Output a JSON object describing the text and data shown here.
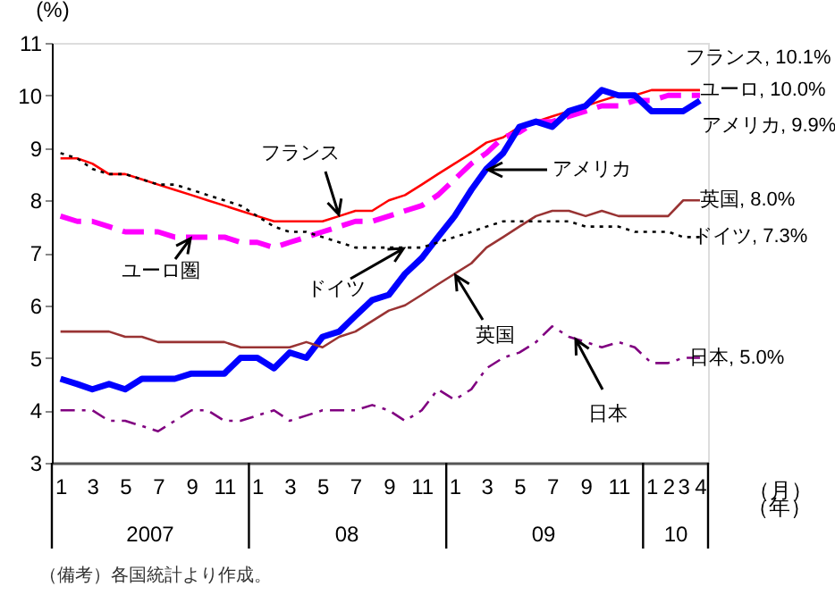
{
  "chart_data": {
    "type": "line",
    "ylabel": "(%)",
    "xlabel": "（月）",
    "x": [
      "2007-01",
      "2007-02",
      "2007-03",
      "2007-04",
      "2007-05",
      "2007-06",
      "2007-07",
      "2007-08",
      "2007-09",
      "2007-10",
      "2007-11",
      "2007-12",
      "2008-01",
      "2008-02",
      "2008-03",
      "2008-04",
      "2008-05",
      "2008-06",
      "2008-07",
      "2008-08",
      "2008-09",
      "2008-10",
      "2008-11",
      "2008-12",
      "2009-01",
      "2009-02",
      "2009-03",
      "2009-04",
      "2009-05",
      "2009-06",
      "2009-07",
      "2009-08",
      "2009-09",
      "2009-10",
      "2009-11",
      "2009-12",
      "2010-01",
      "2010-02",
      "2010-03",
      "2010-04"
    ],
    "series": [
      {
        "color": "#ff0000",
        "line_style": "solid",
        "values": [
          8.8,
          8.8,
          8.7,
          8.5,
          8.5,
          8.4,
          8.3,
          8.2,
          8.1,
          8.0,
          7.9,
          7.8,
          7.7,
          7.6,
          7.6,
          7.6,
          7.6,
          7.7,
          7.8,
          7.8,
          8.0,
          8.1,
          8.3,
          8.5,
          8.7,
          8.9,
          9.1,
          9.2,
          9.4,
          9.5,
          9.6,
          9.7,
          9.8,
          9.9,
          10.0,
          10.0,
          10.1,
          10.1,
          10.1,
          10.1
        ]
      },
      {
        "color": "#ff00ff",
        "line_style": "dashed",
        "values": [
          7.7,
          7.6,
          7.6,
          7.5,
          7.4,
          7.4,
          7.4,
          7.3,
          7.3,
          7.3,
          7.3,
          7.2,
          7.2,
          7.1,
          7.2,
          7.3,
          7.4,
          7.5,
          7.6,
          7.6,
          7.7,
          7.8,
          7.9,
          8.1,
          8.4,
          8.7,
          8.9,
          9.2,
          9.3,
          9.5,
          9.5,
          9.6,
          9.7,
          9.8,
          9.8,
          9.9,
          9.9,
          10.0,
          10.0,
          10.0
        ]
      },
      {
        "color": "#0000ff",
        "line_style": "solid",
        "values": [
          4.6,
          4.5,
          4.4,
          4.5,
          4.4,
          4.6,
          4.6,
          4.6,
          4.7,
          4.7,
          4.7,
          5.0,
          5.0,
          4.8,
          5.1,
          5.0,
          5.4,
          5.5,
          5.8,
          6.1,
          6.2,
          6.6,
          6.9,
          7.3,
          7.7,
          8.2,
          8.6,
          8.9,
          9.4,
          9.5,
          9.4,
          9.7,
          9.8,
          10.1,
          10.0,
          10.0,
          9.7,
          9.7,
          9.7,
          9.9
        ]
      },
      {
        "color": "#993333",
        "line_style": "solid",
        "values": [
          5.5,
          5.5,
          5.5,
          5.5,
          5.4,
          5.4,
          5.3,
          5.3,
          5.3,
          5.3,
          5.3,
          5.2,
          5.2,
          5.2,
          5.2,
          5.3,
          5.2,
          5.4,
          5.5,
          5.7,
          5.9,
          6.0,
          6.2,
          6.4,
          6.6,
          6.8,
          7.1,
          7.3,
          7.5,
          7.7,
          7.8,
          7.8,
          7.7,
          7.8,
          7.7,
          7.7,
          7.7,
          7.7,
          8.0,
          8.0
        ]
      },
      {
        "color": "#000000",
        "line_style": "dotted",
        "values": [
          8.9,
          8.8,
          8.6,
          8.5,
          8.5,
          8.4,
          8.3,
          8.3,
          8.2,
          8.1,
          8.0,
          7.9,
          7.7,
          7.5,
          7.4,
          7.4,
          7.3,
          7.2,
          7.1,
          7.1,
          7.1,
          7.1,
          7.1,
          7.2,
          7.3,
          7.4,
          7.5,
          7.6,
          7.6,
          7.6,
          7.6,
          7.6,
          7.5,
          7.5,
          7.5,
          7.4,
          7.4,
          7.4,
          7.3,
          7.3
        ]
      },
      {
        "color": "#800080",
        "line_style": "dashdot",
        "values": [
          4.0,
          4.0,
          4.0,
          3.8,
          3.8,
          3.7,
          3.6,
          3.8,
          4.0,
          4.0,
          3.8,
          3.8,
          3.9,
          4.0,
          3.8,
          3.9,
          4.0,
          4.0,
          4.0,
          4.1,
          4.0,
          3.8,
          4.0,
          4.4,
          4.2,
          4.4,
          4.8,
          5.0,
          5.1,
          5.3,
          5.6,
          5.4,
          5.3,
          5.2,
          5.3,
          5.2,
          4.9,
          4.9,
          5.0,
          5.0
        ]
      }
    ],
    "xlim": [
      "2006-12-16",
      "2010-04-16"
    ],
    "xticks": [
      {
        "value": "2007-01",
        "label": "1"
      },
      {
        "value": "2007-03",
        "label": "3"
      },
      {
        "value": "2007-05",
        "label": "5"
      },
      {
        "value": "2007-07",
        "label": "7"
      },
      {
        "value": "2007-09",
        "label": "9"
      },
      {
        "value": "2007-11",
        "label": "11"
      },
      {
        "value": "2008-01",
        "label": "1"
      },
      {
        "value": "2008-03",
        "label": "3"
      },
      {
        "value": "2008-05",
        "label": "5"
      },
      {
        "value": "2008-07",
        "label": "7"
      },
      {
        "value": "2008-09",
        "label": "9"
      },
      {
        "value": "2008-11",
        "label": "11"
      },
      {
        "value": "2009-01",
        "label": "1"
      },
      {
        "value": "2009-03",
        "label": "3"
      },
      {
        "value": "2009-05",
        "label": "5"
      },
      {
        "value": "2009-07",
        "label": "7"
      },
      {
        "value": "2009-09",
        "label": "9"
      },
      {
        "value": "2009-11",
        "label": "11"
      },
      {
        "value": "2010-01",
        "label": "1"
      },
      {
        "value": "2010-02",
        "label": "2"
      },
      {
        "value": "2010-03",
        "label": "3"
      },
      {
        "value": "2010-04",
        "label": "4"
      }
    ],
    "ylim": [
      3,
      11
    ],
    "yticks": [
      3,
      4,
      5,
      6,
      7,
      8,
      9,
      10,
      11
    ],
    "grid": false,
    "annotations": [
      {
        "text": "フランス, 10.1%",
        "x": "2010-04",
        "y": 10.1
      },
      {
        "text": "ユーロ, 10.0%",
        "x": "2010-04",
        "y": 10.0
      },
      {
        "text": "アメリカ, 9.9%",
        "x": "2010-04",
        "y": 9.9
      },
      {
        "text": "英国, 8.0%",
        "x": "2010-04",
        "y": 8.0
      },
      {
        "text": "ドイツ, 7.3%",
        "x": "2010-04",
        "y": 7.3
      },
      {
        "text": "日本, 5.0%",
        "x": "2010-04",
        "y": 5.0
      },
      {
        "text": "フランス",
        "x": "2008-06",
        "y": 7.7
      },
      {
        "text": "ユーロ圏",
        "x": "2007-09",
        "y": 7.3
      },
      {
        "text": "英国",
        "x": "2009-01",
        "y": 6.6
      },
      {
        "text": "ドイツ",
        "x": "2008-10",
        "y": 7.1
      },
      "アメリカ",
      "日本",
      "2007",
      "08",
      "09",
      "10",
      "（年）",
      "（備考）各国統計より作成。"
    ]
  }
}
